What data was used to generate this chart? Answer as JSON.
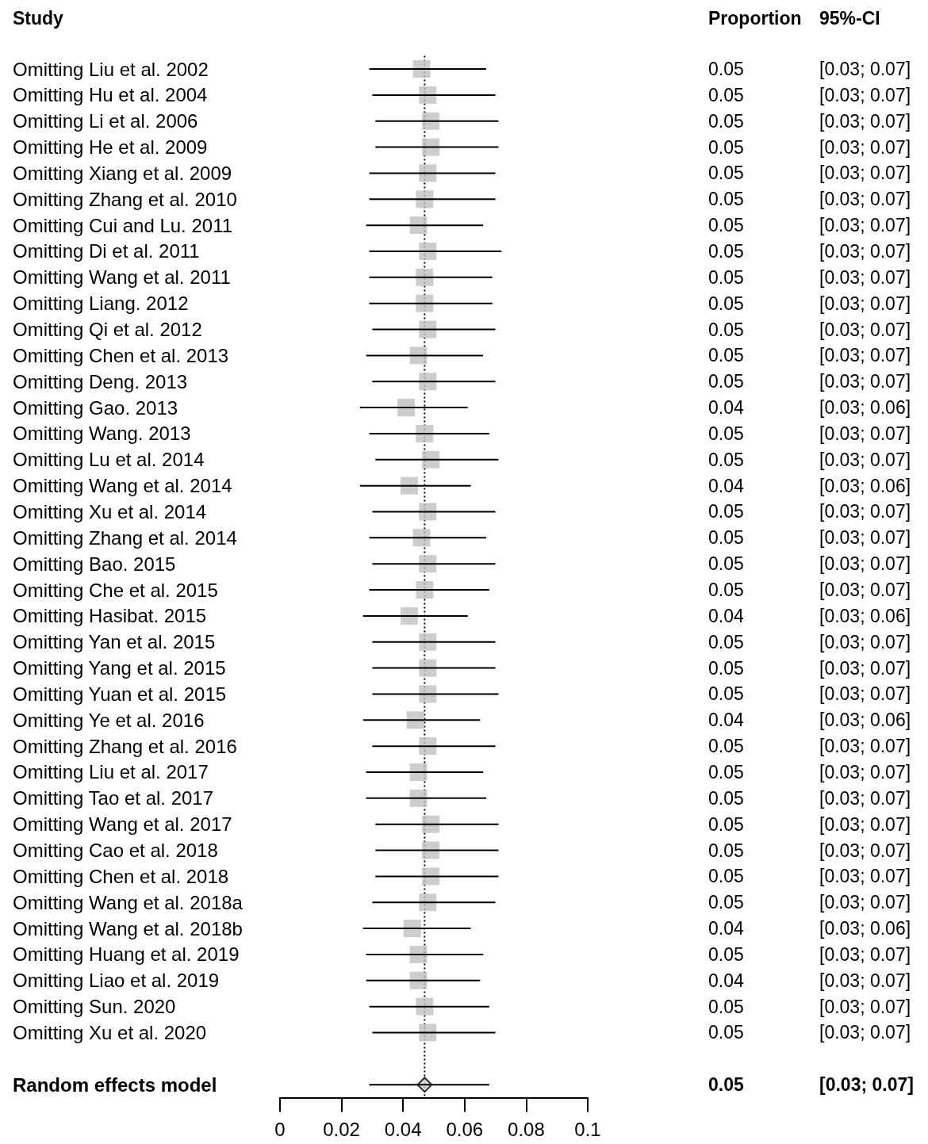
{
  "chart_data": {
    "type": "scatter",
    "orientation": "horizontal",
    "ylabel": "Study",
    "annotations": [
      "Proportion",
      "95%-CI"
    ],
    "categories": [
      "Omitting Liu et al. 2002",
      "Omitting Hu et al. 2004",
      "Omitting Li et al. 2006",
      "Omitting He et al. 2009",
      "Omitting Xiang et al. 2009",
      "Omitting Zhang et al. 2010",
      "Omitting Cui and Lu. 2011",
      "Omitting Di et al. 2011",
      "Omitting Wang et al. 2011",
      "Omitting Liang. 2012",
      "Omitting Qi et al. 2012",
      "Omitting Chen et al. 2013",
      "Omitting Deng. 2013",
      "Omitting Gao. 2013",
      "Omitting Wang. 2013",
      "Omitting Lu et al. 2014",
      "Omitting Wang et al. 2014",
      "Omitting Xu et al. 2014",
      "Omitting Zhang et al. 2014",
      "Omitting Bao. 2015",
      "Omitting Che et al. 2015",
      "Omitting Hasibat. 2015",
      "Omitting Yan et al. 2015",
      "Omitting Yang et al. 2015",
      "Omitting Yuan et al. 2015",
      "Omitting Ye et al. 2016",
      "Omitting Zhang et al. 2016",
      "Omitting Liu et al. 2017",
      "Omitting Tao et al. 2017",
      "Omitting Wang et al. 2017",
      "Omitting Cao et al. 2018",
      "Omitting Chen et al. 2018",
      "Omitting Wang et al. 2018a",
      "Omitting Wang et al. 2018b",
      "Omitting Huang et al. 2019",
      "Omitting Liao et al. 2019",
      "Omitting Sun. 2020",
      "Omitting Xu et al. 2020",
      null,
      "Random effects model"
    ],
    "xlim": [
      0,
      0.1
    ],
    "xticks": [
      0,
      0.02,
      0.04,
      0.06,
      0.08,
      0.1
    ],
    "ref_lines": [
      {
        "axis": "x",
        "value": 0.047,
        "line_style": "dotted",
        "color": "#000000"
      }
    ],
    "series": [
      {
        "color": "#c0c0c0",
        "marker": "square",
        "values": [
          0.046,
          0.048,
          0.049,
          0.049,
          0.048,
          0.047,
          0.045,
          0.048,
          0.047,
          0.047,
          0.048,
          0.045,
          0.048,
          0.041,
          0.047,
          0.049,
          0.042,
          0.048,
          0.046,
          0.048,
          0.047,
          0.042,
          0.048,
          0.048,
          0.048,
          0.044,
          0.048,
          0.045,
          0.045,
          0.049,
          0.049,
          0.049,
          0.048,
          0.043,
          0.045,
          0.045,
          0.047,
          0.048,
          null,
          null
        ],
        "errors": [
          [
            0.029,
            0.067
          ],
          [
            0.03,
            0.07
          ],
          [
            0.031,
            0.071
          ],
          [
            0.031,
            0.071
          ],
          [
            0.029,
            0.07
          ],
          [
            0.029,
            0.07
          ],
          [
            0.028,
            0.066
          ],
          [
            0.029,
            0.072
          ],
          [
            0.029,
            0.069
          ],
          [
            0.029,
            0.069
          ],
          [
            0.03,
            0.07
          ],
          [
            0.028,
            0.066
          ],
          [
            0.03,
            0.07
          ],
          [
            0.026,
            0.061
          ],
          [
            0.029,
            0.068
          ],
          [
            0.031,
            0.071
          ],
          [
            0.026,
            0.062
          ],
          [
            0.03,
            0.07
          ],
          [
            0.029,
            0.067
          ],
          [
            0.03,
            0.07
          ],
          [
            0.029,
            0.068
          ],
          [
            0.027,
            0.061
          ],
          [
            0.03,
            0.07
          ],
          [
            0.03,
            0.07
          ],
          [
            0.03,
            0.071
          ],
          [
            0.027,
            0.065
          ],
          [
            0.03,
            0.07
          ],
          [
            0.028,
            0.066
          ],
          [
            0.028,
            0.067
          ],
          [
            0.031,
            0.071
          ],
          [
            0.031,
            0.071
          ],
          [
            0.031,
            0.071
          ],
          [
            0.03,
            0.07
          ],
          [
            0.027,
            0.062
          ],
          [
            0.028,
            0.066
          ],
          [
            0.028,
            0.065
          ],
          [
            0.029,
            0.068
          ],
          [
            0.03,
            0.07
          ],
          null,
          null
        ],
        "value_labels": [
          [
            "0.05",
            "[0.03; 0.07]"
          ],
          [
            "0.05",
            "[0.03; 0.07]"
          ],
          [
            "0.05",
            "[0.03; 0.07]"
          ],
          [
            "0.05",
            "[0.03; 0.07]"
          ],
          [
            "0.05",
            "[0.03; 0.07]"
          ],
          [
            "0.05",
            "[0.03; 0.07]"
          ],
          [
            "0.05",
            "[0.03; 0.07]"
          ],
          [
            "0.05",
            "[0.03; 0.07]"
          ],
          [
            "0.05",
            "[0.03; 0.07]"
          ],
          [
            "0.05",
            "[0.03; 0.07]"
          ],
          [
            "0.05",
            "[0.03; 0.07]"
          ],
          [
            "0.05",
            "[0.03; 0.07]"
          ],
          [
            "0.05",
            "[0.03; 0.07]"
          ],
          [
            "0.04",
            "[0.03; 0.06]"
          ],
          [
            "0.05",
            "[0.03; 0.07]"
          ],
          [
            "0.05",
            "[0.03; 0.07]"
          ],
          [
            "0.04",
            "[0.03; 0.06]"
          ],
          [
            "0.05",
            "[0.03; 0.07]"
          ],
          [
            "0.05",
            "[0.03; 0.07]"
          ],
          [
            "0.05",
            "[0.03; 0.07]"
          ],
          [
            "0.05",
            "[0.03; 0.07]"
          ],
          [
            "0.04",
            "[0.03; 0.06]"
          ],
          [
            "0.05",
            "[0.03; 0.07]"
          ],
          [
            "0.05",
            "[0.03; 0.07]"
          ],
          [
            "0.05",
            "[0.03; 0.07]"
          ],
          [
            "0.04",
            "[0.03; 0.06]"
          ],
          [
            "0.05",
            "[0.03; 0.07]"
          ],
          [
            "0.05",
            "[0.03; 0.07]"
          ],
          [
            "0.05",
            "[0.03; 0.07]"
          ],
          [
            "0.05",
            "[0.03; 0.07]"
          ],
          [
            "0.05",
            "[0.03; 0.07]"
          ],
          [
            "0.05",
            "[0.03; 0.07]"
          ],
          [
            "0.05",
            "[0.03; 0.07]"
          ],
          [
            "0.04",
            "[0.03; 0.06]"
          ],
          [
            "0.05",
            "[0.03; 0.07]"
          ],
          [
            "0.04",
            "[0.03; 0.07]"
          ],
          [
            "0.05",
            "[0.03; 0.07]"
          ],
          [
            "0.05",
            "[0.03; 0.07]"
          ],
          null,
          null
        ]
      },
      {
        "color": "#d3d3d3",
        "marker": "diamond",
        "values": [
          null,
          null,
          null,
          null,
          null,
          null,
          null,
          null,
          null,
          null,
          null,
          null,
          null,
          null,
          null,
          null,
          null,
          null,
          null,
          null,
          null,
          null,
          null,
          null,
          null,
          null,
          null,
          null,
          null,
          null,
          null,
          null,
          null,
          null,
          null,
          null,
          null,
          null,
          null,
          0.047
        ],
        "errors": [
          null,
          null,
          null,
          null,
          null,
          null,
          null,
          null,
          null,
          null,
          null,
          null,
          null,
          null,
          null,
          null,
          null,
          null,
          null,
          null,
          null,
          null,
          null,
          null,
          null,
          null,
          null,
          null,
          null,
          null,
          null,
          null,
          null,
          null,
          null,
          null,
          null,
          null,
          null,
          [
            0.029,
            0.068
          ]
        ],
        "value_labels": [
          null,
          null,
          null,
          null,
          null,
          null,
          null,
          null,
          null,
          null,
          null,
          null,
          null,
          null,
          null,
          null,
          null,
          null,
          null,
          null,
          null,
          null,
          null,
          null,
          null,
          null,
          null,
          null,
          null,
          null,
          null,
          null,
          null,
          null,
          null,
          null,
          null,
          null,
          null,
          [
            "0.05",
            "[0.03; 0.07]"
          ]
        ]
      }
    ]
  }
}
